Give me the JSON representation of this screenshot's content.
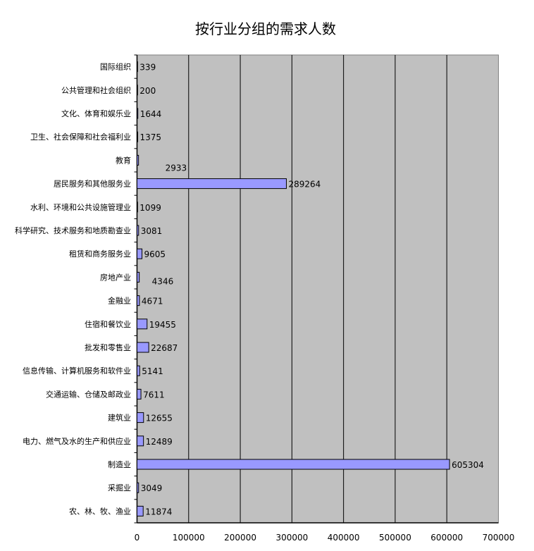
{
  "chart_data": {
    "type": "bar",
    "orientation": "horizontal",
    "title": "按行业分组的需求人数",
    "xlabel": "",
    "ylabel": "",
    "xlim": [
      0,
      700000
    ],
    "x_ticks": [
      "0",
      "100000",
      "200000",
      "300000",
      "400000",
      "500000",
      "600000",
      "700000"
    ],
    "grid": "vertical major gridlines",
    "legend": "none",
    "categories": [
      "国际组织",
      "公共管理和社会组织",
      "文化、体育和娱乐业",
      "卫生、社会保障和社会福利业",
      "教育",
      "居民服务和其他服务业",
      "水利、环境和公共设施管理业",
      "科学研究、技术服务和地质勘查业",
      "租赁和商务服务业",
      "房地产业",
      "金融业",
      "住宿和餐饮业",
      "批发和零售业",
      "信息传输、计算机服务和软件业",
      "交通运输、仓储及邮政业",
      "建筑业",
      "电力、燃气及水的生产和供应业",
      "制造业",
      "采掘业",
      "农、林、牧、渔业"
    ],
    "values": [
      339,
      200,
      1644,
      1375,
      2933,
      289264,
      1099,
      3081,
      9605,
      4346,
      4671,
      19455,
      22687,
      5141,
      7611,
      12655,
      12489,
      605304,
      3049,
      11874
    ],
    "colors": {
      "bar": "#9999ff",
      "plot_bg": "#c0c0c0",
      "grid": "#000000"
    }
  }
}
